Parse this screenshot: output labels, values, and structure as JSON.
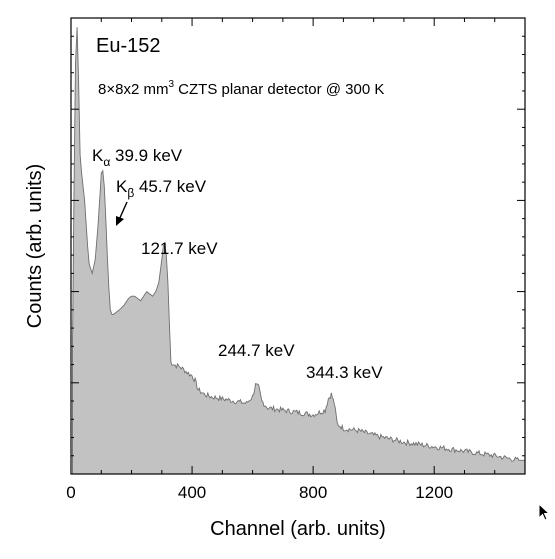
{
  "chart_data": {
    "type": "area",
    "title": "Eu-152",
    "subtitle": {
      "prefix": "8×8x2 mm",
      "sup": "3",
      "suffix": " CZTS planar detector @ 300 K"
    },
    "xlabel": "Channel (arb. units)",
    "ylabel": "Counts (arb. units)",
    "xlim": [
      0,
      1500
    ],
    "ylim": [
      0,
      1
    ],
    "y_tick_labels": "none",
    "x_ticks": [
      "0",
      "400",
      "800",
      "1200"
    ],
    "x_tick_values": [
      0,
      400,
      800,
      1200
    ],
    "grid": false,
    "colors": {
      "fill": "#c2c2c2",
      "line": "#6e6e6e",
      "axis": "#000000"
    },
    "series": [
      {
        "x": [
          5,
          10,
          15,
          20,
          25,
          30,
          35,
          40,
          45,
          50,
          55,
          60,
          70,
          80,
          90,
          100,
          105,
          110,
          115,
          120,
          125,
          130,
          135,
          140,
          150,
          160,
          175,
          190,
          200,
          210,
          220,
          230,
          240,
          250,
          260,
          270,
          280,
          290,
          300,
          305,
          310,
          315,
          320,
          325,
          330,
          340,
          360,
          380,
          400,
          410,
          420,
          440,
          460,
          500,
          540,
          580,
          600,
          610,
          620,
          630,
          650,
          700,
          750,
          800,
          840,
          850,
          860,
          870,
          880,
          900,
          950,
          1000,
          1100,
          1200,
          1300,
          1400,
          1480
        ],
        "y": [
          0.28,
          0.62,
          0.9,
          0.98,
          0.86,
          0.7,
          0.66,
          0.63,
          0.6,
          0.55,
          0.5,
          0.46,
          0.44,
          0.47,
          0.55,
          0.66,
          0.665,
          0.63,
          0.56,
          0.48,
          0.41,
          0.36,
          0.35,
          0.35,
          0.355,
          0.36,
          0.37,
          0.385,
          0.39,
          0.39,
          0.385,
          0.38,
          0.39,
          0.4,
          0.395,
          0.39,
          0.4,
          0.42,
          0.47,
          0.5,
          0.505,
          0.48,
          0.42,
          0.33,
          0.245,
          0.24,
          0.235,
          0.225,
          0.215,
          0.205,
          0.185,
          0.175,
          0.17,
          0.165,
          0.16,
          0.155,
          0.17,
          0.195,
          0.19,
          0.16,
          0.145,
          0.14,
          0.135,
          0.13,
          0.14,
          0.165,
          0.175,
          0.155,
          0.11,
          0.1,
          0.095,
          0.085,
          0.07,
          0.06,
          0.05,
          0.04,
          0.03
        ]
      }
    ],
    "annotations": [
      {
        "base": "K",
        "sub": "α",
        "text": " 39.9 keV"
      },
      {
        "base": "K",
        "sub": "β",
        "text": " 45.7 keV"
      },
      {
        "text": "121.7 keV"
      },
      {
        "text": "244.7 keV"
      },
      {
        "text": "344.3 keV"
      }
    ]
  }
}
